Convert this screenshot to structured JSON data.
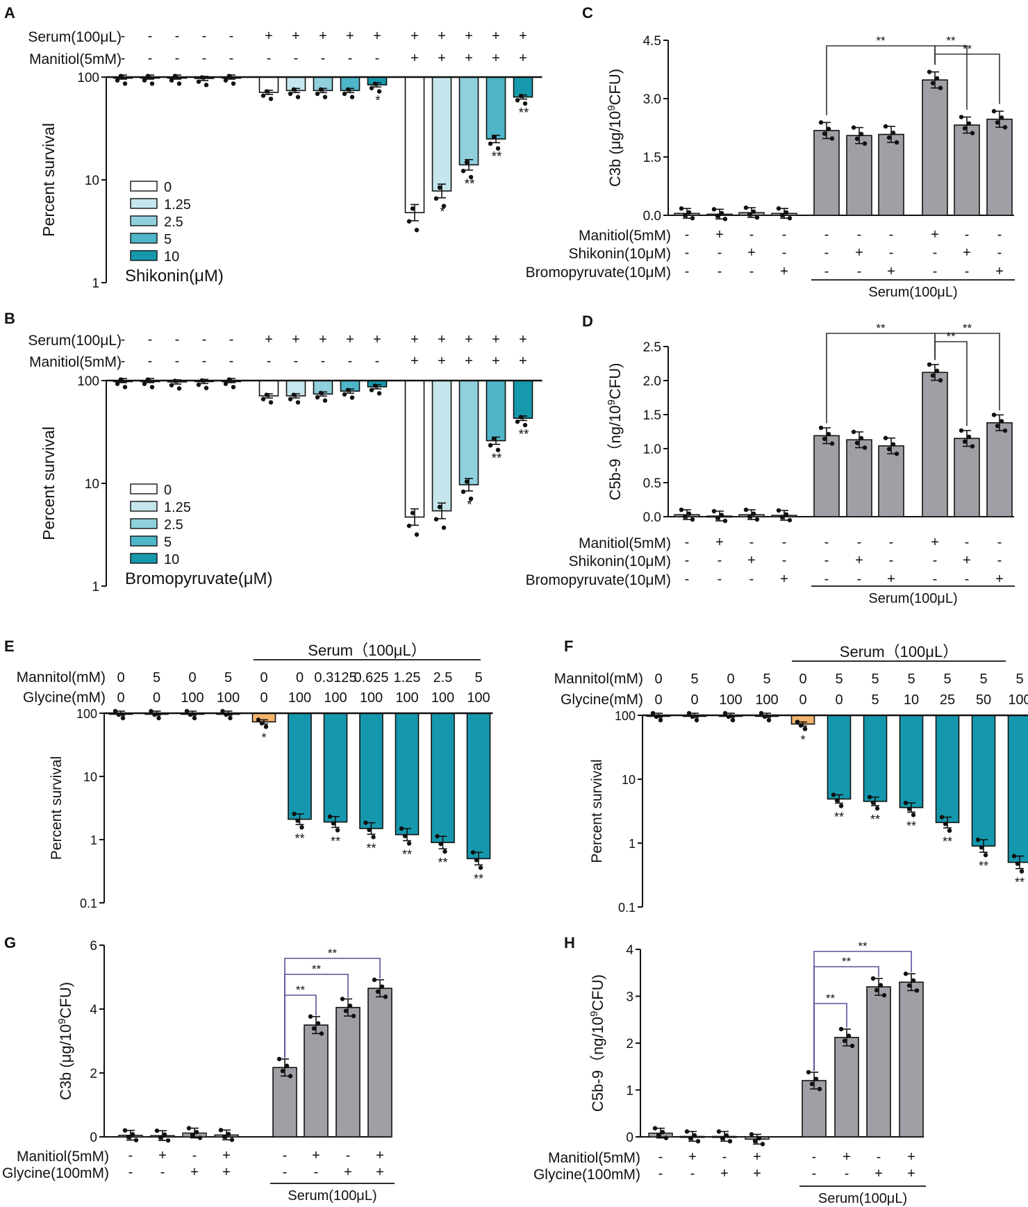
{
  "figure": {
    "background": "#ffffff"
  },
  "colors": {
    "shade_0": "#ffffff",
    "shade_1": "#c5e6ec",
    "shade_2": "#8fd0dc",
    "shade_3": "#4fb5c8",
    "shade_4": "#1799ad",
    "teal": "#1598ae",
    "orange": "#f3b46c",
    "gray": "#9fa0a5",
    "bracket_black": "#333333",
    "bracket_purple": "#55519a"
  },
  "chart_data": [
    {
      "panel": "A",
      "type": "bar",
      "scale": "log",
      "ylabel": "Percent survival",
      "yticks": [
        "100",
        "10",
        "1"
      ],
      "ylim": [
        1,
        100
      ],
      "rows": [
        {
          "label": "Serum(100μL)",
          "signs": [
            "-",
            "-",
            "-",
            "-",
            "-",
            "+",
            "+",
            "+",
            "+",
            "+",
            "+",
            "+",
            "+",
            "+",
            "+"
          ]
        },
        {
          "label": "Manitiol(5mM)",
          "signs": [
            "-",
            "-",
            "-",
            "-",
            "-",
            "-",
            "-",
            "-",
            "-",
            "-",
            "+",
            "+",
            "+",
            "+",
            "+"
          ]
        }
      ],
      "legend_title": "Shikonin(μM)",
      "legend": [
        "0",
        "1.25",
        "2.5",
        "5",
        "10"
      ],
      "bars": [
        {
          "value": 100,
          "shade": 0,
          "sig": ""
        },
        {
          "value": 100,
          "shade": 1,
          "sig": ""
        },
        {
          "value": 100,
          "shade": 2,
          "sig": ""
        },
        {
          "value": 97,
          "shade": 3,
          "sig": ""
        },
        {
          "value": 100,
          "shade": 4,
          "sig": ""
        },
        {
          "value": 71,
          "shade": 0,
          "sig": ""
        },
        {
          "value": 74,
          "shade": 1,
          "sig": ""
        },
        {
          "value": 74,
          "shade": 2,
          "sig": ""
        },
        {
          "value": 74,
          "shade": 3,
          "sig": ""
        },
        {
          "value": 84,
          "shade": 4,
          "sig": "*"
        },
        {
          "value": 4.8,
          "shade": 0,
          "sig": ""
        },
        {
          "value": 7.8,
          "shade": 1,
          "sig": "*"
        },
        {
          "value": 14,
          "shade": 2,
          "sig": "**"
        },
        {
          "value": 25,
          "shade": 3,
          "sig": "**"
        },
        {
          "value": 64,
          "shade": 4,
          "sig": "**"
        }
      ]
    },
    {
      "panel": "B",
      "type": "bar",
      "scale": "log",
      "ylabel": "Percent survival",
      "yticks": [
        "100",
        "10",
        "1"
      ],
      "ylim": [
        1,
        100
      ],
      "rows": [
        {
          "label": "Serum(100μL)",
          "signs": [
            "-",
            "-",
            "-",
            "-",
            "-",
            "+",
            "+",
            "+",
            "+",
            "+",
            "+",
            "+",
            "+",
            "+",
            "+"
          ]
        },
        {
          "label": "Manitiol(5mM)",
          "signs": [
            "-",
            "-",
            "-",
            "-",
            "-",
            "-",
            "-",
            "-",
            "-",
            "-",
            "+",
            "+",
            "+",
            "+",
            "+"
          ]
        }
      ],
      "legend_title": "Bromopyruvate(μM)",
      "legend": [
        "0",
        "1.25",
        "2.5",
        "5",
        "10"
      ],
      "bars": [
        {
          "value": 100,
          "shade": 0,
          "sig": ""
        },
        {
          "value": 100,
          "shade": 1,
          "sig": ""
        },
        {
          "value": 97,
          "shade": 2,
          "sig": ""
        },
        {
          "value": 98,
          "shade": 3,
          "sig": ""
        },
        {
          "value": 100,
          "shade": 4,
          "sig": ""
        },
        {
          "value": 71,
          "shade": 0,
          "sig": ""
        },
        {
          "value": 71,
          "shade": 1,
          "sig": ""
        },
        {
          "value": 74,
          "shade": 2,
          "sig": ""
        },
        {
          "value": 79,
          "shade": 3,
          "sig": ""
        },
        {
          "value": 87,
          "shade": 4,
          "sig": ""
        },
        {
          "value": 4.7,
          "shade": 0,
          "sig": ""
        },
        {
          "value": 5.4,
          "shade": 1,
          "sig": ""
        },
        {
          "value": 9.7,
          "shade": 2,
          "sig": "*"
        },
        {
          "value": 26,
          "shade": 3,
          "sig": "**"
        },
        {
          "value": 43,
          "shade": 4,
          "sig": "**"
        }
      ]
    },
    {
      "panel": "C",
      "type": "bar",
      "scale": "linear",
      "ylabel_base": "C3b (μg/10",
      "ylabel_sup": "9",
      "ylabel_end": "CFU)",
      "yticks": [
        "0.0",
        "1.5",
        "3.0",
        "4.5"
      ],
      "ylim": [
        0,
        4.5
      ],
      "values": [
        0.05,
        0.03,
        0.07,
        0.05,
        2.18,
        2.05,
        2.08,
        3.48,
        2.32,
        2.47
      ],
      "rows": [
        {
          "label": "Manitiol(5mM)",
          "signs": [
            "-",
            "+",
            "-",
            "-",
            "-",
            "-",
            "-",
            "+",
            "-",
            "-"
          ]
        },
        {
          "label": "Shikonin(10μM)",
          "signs": [
            "-",
            "-",
            "+",
            "-",
            "-",
            "+",
            "-",
            "-",
            "+",
            "-"
          ]
        },
        {
          "label": "Bromopyruvate(10μM)",
          "signs": [
            "-",
            "-",
            "-",
            "+",
            "-",
            "-",
            "+",
            "-",
            "-",
            "+"
          ]
        }
      ],
      "group_label": "Serum(100μL)",
      "brackets": [
        {
          "from": 4,
          "to": 7,
          "label": "**"
        },
        {
          "from": 7,
          "to": 8,
          "label": "**"
        },
        {
          "from": 7,
          "to": 9,
          "label": "**"
        }
      ]
    },
    {
      "panel": "D",
      "type": "bar",
      "scale": "linear",
      "ylabel_base": "C5b-9（ng/10",
      "ylabel_sup": "9",
      "ylabel_end": "CFU)",
      "yticks": [
        "0.0",
        "0.5",
        "1.0",
        "1.5",
        "2.0",
        "2.5"
      ],
      "ylim": [
        0,
        2.5
      ],
      "values": [
        0.03,
        0.01,
        0.03,
        0.02,
        1.19,
        1.13,
        1.04,
        2.12,
        1.15,
        1.38
      ],
      "rows": [
        {
          "label": "Manitiol(5mM)",
          "signs": [
            "-",
            "+",
            "-",
            "-",
            "-",
            "-",
            "-",
            "+",
            "-",
            "-"
          ]
        },
        {
          "label": "Shikonin(10μM)",
          "signs": [
            "-",
            "-",
            "+",
            "-",
            "-",
            "+",
            "-",
            "-",
            "+",
            "-"
          ]
        },
        {
          "label": "Bromopyruvate(10μM)",
          "signs": [
            "-",
            "-",
            "-",
            "+",
            "-",
            "-",
            "+",
            "-",
            "-",
            "+"
          ]
        }
      ],
      "group_label": "Serum(100μL)",
      "brackets": [
        {
          "from": 4,
          "to": 7,
          "label": "**"
        },
        {
          "from": 7,
          "to": 8,
          "label": "**"
        },
        {
          "from": 7,
          "to": 9,
          "label": "**"
        }
      ]
    },
    {
      "panel": "E",
      "type": "bar",
      "scale": "log",
      "ylabel": "Percent survival",
      "yticks": [
        "100",
        "10",
        "1",
        "0.1"
      ],
      "ylim": [
        0.1,
        100
      ],
      "serum_label": "Serum（100μL）",
      "rows": [
        {
          "label": "Mannitol(mM)",
          "values": [
            "0",
            "5",
            "0",
            "5",
            "0",
            "0",
            "0.3125",
            "0.625",
            "1.25",
            "2.5",
            "5"
          ]
        },
        {
          "label": "Glycine(mM)",
          "values": [
            "0",
            "0",
            "100",
            "100",
            "0",
            "100",
            "100",
            "100",
            "100",
            "100",
            "100"
          ]
        }
      ],
      "bars": [
        {
          "value": 100,
          "color": "teal",
          "sig": ""
        },
        {
          "value": 100,
          "color": "teal",
          "sig": ""
        },
        {
          "value": 100,
          "color": "teal",
          "sig": ""
        },
        {
          "value": 100,
          "color": "teal",
          "sig": ""
        },
        {
          "value": 73,
          "color": "orange",
          "sig": "*"
        },
        {
          "value": 2.1,
          "color": "teal",
          "sig": "**"
        },
        {
          "value": 1.9,
          "color": "teal",
          "sig": "**"
        },
        {
          "value": 1.5,
          "color": "teal",
          "sig": "**"
        },
        {
          "value": 1.2,
          "color": "teal",
          "sig": "**"
        },
        {
          "value": 0.9,
          "color": "teal",
          "sig": "**"
        },
        {
          "value": 0.5,
          "color": "teal",
          "sig": "**"
        }
      ]
    },
    {
      "panel": "F",
      "type": "bar",
      "scale": "log",
      "ylabel": "Percent survival",
      "yticks": [
        "100",
        "10",
        "1",
        "0.1"
      ],
      "ylim": [
        0.1,
        100
      ],
      "serum_label": "Serum（100μL）",
      "rows": [
        {
          "label": "Mannitol(mM)",
          "values": [
            "0",
            "5",
            "0",
            "5",
            "0",
            "5",
            "5",
            "5",
            "5",
            "5",
            "5"
          ]
        },
        {
          "label": "Glycine(mM)",
          "values": [
            "0",
            "0",
            "100",
            "100",
            "0",
            "0",
            "5",
            "10",
            "25",
            "50",
            "100"
          ]
        }
      ],
      "bars": [
        {
          "value": 100,
          "color": "teal",
          "sig": ""
        },
        {
          "value": 100,
          "color": "teal",
          "sig": ""
        },
        {
          "value": 100,
          "color": "teal",
          "sig": ""
        },
        {
          "value": 100,
          "color": "teal",
          "sig": ""
        },
        {
          "value": 73,
          "color": "orange",
          "sig": "*"
        },
        {
          "value": 4.9,
          "color": "teal",
          "sig": "**"
        },
        {
          "value": 4.5,
          "color": "teal",
          "sig": "**"
        },
        {
          "value": 3.6,
          "color": "teal",
          "sig": "**"
        },
        {
          "value": 2.1,
          "color": "teal",
          "sig": "**"
        },
        {
          "value": 0.9,
          "color": "teal",
          "sig": "**"
        },
        {
          "value": 0.5,
          "color": "teal",
          "sig": "**"
        }
      ]
    },
    {
      "panel": "G",
      "type": "bar",
      "scale": "linear",
      "ylabel_base": "C3b (μg/10",
      "ylabel_sup": "9",
      "ylabel_end": "CFU)",
      "yticks": [
        "0",
        "2",
        "4",
        "6"
      ],
      "ylim": [
        0,
        6
      ],
      "values": [
        0.05,
        0.04,
        0.12,
        0.06,
        2.17,
        3.5,
        4.05,
        4.65
      ],
      "rows": [
        {
          "label": "Manitiol(5mM)",
          "signs": [
            "-",
            "+",
            "-",
            "+",
            "-",
            "+",
            "-",
            "+"
          ]
        },
        {
          "label": "Glycine(100mM)",
          "signs": [
            "-",
            "-",
            "+",
            "+",
            "-",
            "-",
            "+",
            "+"
          ]
        }
      ],
      "group_label": "Serum(100μL)",
      "brackets": [
        {
          "from": 4,
          "to": 5,
          "label": "**"
        },
        {
          "from": 4,
          "to": 6,
          "label": "**"
        },
        {
          "from": 4,
          "to": 7,
          "label": "**"
        }
      ]
    },
    {
      "panel": "H",
      "type": "bar",
      "scale": "linear",
      "ylabel_base": "C5b-9（ng/10",
      "ylabel_sup": "9",
      "ylabel_end": "CFU)",
      "yticks": [
        "0",
        "1",
        "2",
        "3",
        "4"
      ],
      "ylim": [
        0,
        4
      ],
      "values": [
        0.08,
        0.01,
        0.01,
        -0.05,
        1.2,
        2.12,
        3.2,
        3.3
      ],
      "rows": [
        {
          "label": "Manitiol(5mM)",
          "signs": [
            "-",
            "+",
            "-",
            "+",
            "-",
            "+",
            "-",
            "+"
          ]
        },
        {
          "label": "Glycine(100mM)",
          "signs": [
            "-",
            "-",
            "+",
            "+",
            "-",
            "-",
            "+",
            "+"
          ]
        }
      ],
      "group_label": "Serum(100μL)",
      "brackets": [
        {
          "from": 4,
          "to": 5,
          "label": "**"
        },
        {
          "from": 4,
          "to": 6,
          "label": "**"
        },
        {
          "from": 4,
          "to": 7,
          "label": "**"
        }
      ]
    }
  ]
}
